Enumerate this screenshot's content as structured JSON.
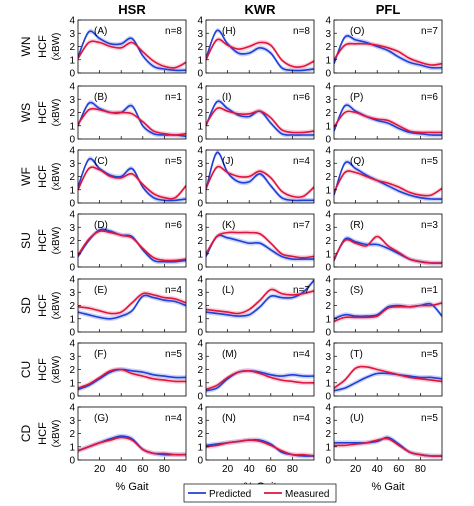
{
  "figure": {
    "columns": [
      "HSR",
      "KWR",
      "PFL"
    ],
    "rows": [
      {
        "task": "WN",
        "ylabel": "HCF",
        "yunit": "(xBW)"
      },
      {
        "task": "WS",
        "ylabel": "HCF",
        "yunit": "(xBW)"
      },
      {
        "task": "WF",
        "ylabel": "HCF",
        "yunit": "(xBW)"
      },
      {
        "task": "SU",
        "ylabel": "HCF",
        "yunit": "(xBW)"
      },
      {
        "task": "SD",
        "ylabel": "HCF",
        "yunit": "(xBW)"
      },
      {
        "task": "CU",
        "ylabel": "HCF",
        "yunit": "(xBW)"
      },
      {
        "task": "CD",
        "ylabel": "HCF",
        "yunit": "(xBW)"
      }
    ],
    "xlabel": "% Gait",
    "legend": {
      "placement": "bottom-center",
      "items": [
        {
          "label": "Predicted",
          "color": "#1f3fd6"
        },
        {
          "label": "Measured",
          "color": "#e0143c"
        }
      ]
    },
    "colors": {
      "predicted": "#1f3fd6",
      "measured": "#e0143c",
      "predicted_band": "#8f9ff0",
      "measured_band": "#f2a0b4"
    }
  },
  "chart_data": {
    "type": "line",
    "x_range": [
      0,
      100
    ],
    "xticks": [
      20,
      40,
      60,
      80
    ],
    "ylim": [
      0,
      4
    ],
    "yticks": [
      0,
      1,
      2,
      3,
      4
    ],
    "x": [
      0,
      10,
      20,
      30,
      40,
      50,
      60,
      70,
      80,
      90,
      100
    ],
    "panels": [
      {
        "id": "A",
        "task": "WN",
        "group": "HSR",
        "n": "n=8",
        "series": [
          {
            "name": "Predicted",
            "values": [
              1.2,
              3.1,
              2.6,
              2.2,
              2.2,
              2.6,
              1.3,
              0.5,
              0.3,
              0.2,
              0.2
            ]
          },
          {
            "name": "Measured",
            "values": [
              1.1,
              2.3,
              2.3,
              2.0,
              1.9,
              2.3,
              1.6,
              0.9,
              0.5,
              0.4,
              0.8
            ]
          }
        ]
      },
      {
        "id": "H",
        "task": "WN",
        "group": "KWR",
        "n": "n=8",
        "series": [
          {
            "name": "Predicted",
            "values": [
              1.1,
              3.2,
              2.2,
              1.5,
              1.5,
              1.9,
              1.5,
              0.4,
              0.2,
              0.2,
              0.3
            ]
          },
          {
            "name": "Measured",
            "values": [
              1.0,
              2.5,
              2.1,
              1.8,
              2.0,
              2.3,
              2.1,
              1.0,
              0.5,
              0.5,
              0.9
            ]
          }
        ]
      },
      {
        "id": "O",
        "task": "WN",
        "group": "PFL",
        "n": "n=7",
        "series": [
          {
            "name": "Predicted",
            "values": [
              0.7,
              2.7,
              2.5,
              2.3,
              2.0,
              1.7,
              1.2,
              0.8,
              0.6,
              0.4,
              0.4
            ]
          },
          {
            "name": "Measured",
            "values": [
              1.0,
              2.1,
              2.2,
              2.2,
              2.1,
              1.9,
              1.6,
              1.1,
              0.8,
              0.6,
              0.7
            ]
          }
        ]
      },
      {
        "id": "B",
        "task": "WS",
        "group": "HSR",
        "n": "n=1",
        "series": [
          {
            "name": "Predicted",
            "values": [
              1.0,
              2.7,
              2.3,
              2.0,
              2.0,
              2.5,
              1.0,
              0.4,
              0.3,
              0.3,
              0.2
            ]
          },
          {
            "name": "Measured",
            "values": [
              1.1,
              2.2,
              2.2,
              2.0,
              2.0,
              1.9,
              1.3,
              0.6,
              0.4,
              0.3,
              0.4
            ]
          }
        ]
      },
      {
        "id": "I",
        "task": "WS",
        "group": "KWR",
        "n": "n=6",
        "series": [
          {
            "name": "Predicted",
            "values": [
              1.0,
              2.8,
              2.3,
              1.8,
              1.7,
              2.1,
              1.2,
              0.4,
              0.3,
              0.3,
              0.3
            ]
          },
          {
            "name": "Measured",
            "values": [
              1.1,
              2.3,
              2.1,
              1.9,
              1.9,
              2.1,
              1.6,
              0.7,
              0.5,
              0.5,
              0.6
            ]
          }
        ]
      },
      {
        "id": "P",
        "task": "WS",
        "group": "PFL",
        "n": "n=6",
        "series": [
          {
            "name": "Predicted",
            "values": [
              0.6,
              2.5,
              2.1,
              1.7,
              1.4,
              1.2,
              0.8,
              0.5,
              0.4,
              0.3,
              0.3
            ]
          },
          {
            "name": "Measured",
            "values": [
              0.9,
              2.0,
              2.0,
              1.7,
              1.5,
              1.4,
              1.0,
              0.6,
              0.5,
              0.5,
              0.5
            ]
          }
        ]
      },
      {
        "id": "C",
        "task": "WF",
        "group": "HSR",
        "n": "n=5",
        "series": [
          {
            "name": "Predicted",
            "values": [
              1.2,
              3.3,
              2.6,
              2.1,
              2.0,
              2.6,
              1.2,
              0.4,
              0.2,
              0.2,
              0.3
            ]
          },
          {
            "name": "Measured",
            "values": [
              1.0,
              2.6,
              2.5,
              2.0,
              1.9,
              2.2,
              1.4,
              0.7,
              0.4,
              0.4,
              1.3
            ]
          }
        ]
      },
      {
        "id": "J",
        "task": "WF",
        "group": "KWR",
        "n": "n=4",
        "series": [
          {
            "name": "Predicted",
            "values": [
              1.0,
              3.8,
              2.3,
              1.6,
              1.6,
              2.2,
              1.3,
              0.4,
              0.2,
              0.2,
              0.2
            ]
          },
          {
            "name": "Measured",
            "values": [
              1.1,
              2.7,
              2.3,
              2.0,
              2.0,
              2.4,
              1.9,
              0.9,
              0.5,
              0.5,
              1.2
            ]
          }
        ]
      },
      {
        "id": "Q",
        "task": "WF",
        "group": "PFL",
        "n": "n=5",
        "series": [
          {
            "name": "Predicted",
            "values": [
              0.6,
              3.0,
              2.6,
              2.1,
              1.7,
              1.3,
              0.9,
              0.6,
              0.4,
              0.3,
              0.3
            ]
          },
          {
            "name": "Measured",
            "values": [
              0.8,
              2.3,
              2.3,
              2.0,
              1.7,
              1.5,
              1.2,
              0.8,
              0.6,
              0.6,
              1.1
            ]
          }
        ]
      },
      {
        "id": "D",
        "task": "SU",
        "group": "HSR",
        "n": "n=6",
        "series": [
          {
            "name": "Predicted",
            "values": [
              0.8,
              2.0,
              2.8,
              2.7,
              2.4,
              2.3,
              1.3,
              0.5,
              0.4,
              0.4,
              0.5
            ]
          },
          {
            "name": "Measured",
            "values": [
              0.9,
              2.1,
              2.7,
              2.6,
              2.4,
              2.2,
              1.4,
              0.7,
              0.5,
              0.5,
              0.6
            ]
          }
        ]
      },
      {
        "id": "K",
        "task": "SU",
        "group": "KWR",
        "n": "n=7",
        "series": [
          {
            "name": "Predicted",
            "values": [
              0.8,
              2.3,
              2.2,
              2.0,
              1.8,
              1.8,
              1.3,
              0.8,
              0.6,
              0.6,
              0.6
            ]
          },
          {
            "name": "Measured",
            "values": [
              1.0,
              2.3,
              2.6,
              2.6,
              2.6,
              2.5,
              1.8,
              1.0,
              0.8,
              0.7,
              0.8
            ]
          }
        ]
      },
      {
        "id": "R",
        "task": "SU",
        "group": "PFL",
        "n": "n=3",
        "series": [
          {
            "name": "Predicted",
            "values": [
              0.5,
              2.1,
              1.9,
              1.7,
              1.7,
              1.4,
              1.0,
              0.6,
              0.4,
              0.3,
              0.3
            ]
          },
          {
            "name": "Measured",
            "values": [
              0.6,
              2.0,
              1.8,
              1.6,
              2.3,
              1.6,
              1.1,
              0.6,
              0.4,
              0.3,
              0.3
            ]
          }
        ]
      },
      {
        "id": "E",
        "task": "SD",
        "group": "HSR",
        "n": "n=4",
        "series": [
          {
            "name": "Predicted",
            "values": [
              1.5,
              1.3,
              1.1,
              1.0,
              1.2,
              1.6,
              2.7,
              2.6,
              2.4,
              2.3,
              2.0
            ]
          },
          {
            "name": "Measured",
            "values": [
              1.9,
              1.8,
              1.6,
              1.4,
              1.5,
              2.2,
              2.9,
              2.8,
              2.6,
              2.5,
              2.2
            ]
          }
        ]
      },
      {
        "id": "L",
        "task": "SD",
        "group": "KWR",
        "n": "n=7",
        "series": [
          {
            "name": "Predicted",
            "values": [
              1.5,
              1.4,
              1.3,
              1.2,
              1.3,
              1.9,
              2.7,
              2.6,
              2.6,
              3.0,
              3.9
            ]
          },
          {
            "name": "Measured",
            "values": [
              1.7,
              1.6,
              1.5,
              1.4,
              1.7,
              2.4,
              3.2,
              2.9,
              2.8,
              2.9,
              3.1
            ]
          }
        ]
      },
      {
        "id": "S",
        "task": "SD",
        "group": "PFL",
        "n": "n=1",
        "series": [
          {
            "name": "Predicted",
            "values": [
              1.0,
              1.3,
              1.2,
              1.2,
              1.3,
              1.9,
              2.0,
              1.9,
              2.0,
              2.1,
              1.2
            ]
          },
          {
            "name": "Measured",
            "values": [
              0.8,
              1.1,
              1.1,
              1.1,
              1.2,
              1.8,
              1.9,
              1.9,
              2.0,
              2.0,
              2.2
            ]
          }
        ]
      },
      {
        "id": "F",
        "task": "CU",
        "group": "HSR",
        "n": "n=5",
        "series": [
          {
            "name": "Predicted",
            "values": [
              0.5,
              0.8,
              1.3,
              1.8,
              2.0,
              1.9,
              1.8,
              1.6,
              1.5,
              1.4,
              1.4
            ]
          },
          {
            "name": "Measured",
            "values": [
              0.6,
              0.9,
              1.4,
              1.9,
              2.0,
              1.7,
              1.5,
              1.3,
              1.2,
              1.1,
              1.1
            ]
          }
        ]
      },
      {
        "id": "M",
        "task": "CU",
        "group": "KWR",
        "n": "n=4",
        "series": [
          {
            "name": "Predicted",
            "values": [
              0.4,
              0.6,
              1.3,
              1.8,
              1.9,
              1.8,
              1.6,
              1.5,
              1.6,
              1.5,
              1.5
            ]
          },
          {
            "name": "Measured",
            "values": [
              0.5,
              0.8,
              1.4,
              1.8,
              1.9,
              1.7,
              1.4,
              1.2,
              1.1,
              1.0,
              1.0
            ]
          }
        ]
      },
      {
        "id": "T",
        "task": "CU",
        "group": "PFL",
        "n": "n=5",
        "series": [
          {
            "name": "Predicted",
            "values": [
              0.4,
              0.6,
              1.0,
              1.4,
              1.7,
              1.7,
              1.6,
              1.5,
              1.4,
              1.4,
              1.3
            ]
          },
          {
            "name": "Measured",
            "values": [
              0.6,
              1.2,
              2.1,
              2.2,
              2.0,
              1.8,
              1.6,
              1.4,
              1.3,
              1.2,
              1.1
            ]
          }
        ]
      },
      {
        "id": "G",
        "task": "CD",
        "group": "HSR",
        "n": "n=4",
        "series": [
          {
            "name": "Predicted",
            "values": [
              0.7,
              1.0,
              1.3,
              1.6,
              1.8,
              1.6,
              0.8,
              0.5,
              0.4,
              0.4,
              0.4
            ]
          },
          {
            "name": "Measured",
            "values": [
              0.7,
              1.0,
              1.3,
              1.5,
              1.7,
              1.5,
              0.8,
              0.5,
              0.5,
              0.4,
              0.4
            ]
          }
        ]
      },
      {
        "id": "N",
        "task": "CD",
        "group": "KWR",
        "n": "n=4",
        "series": [
          {
            "name": "Predicted",
            "values": [
              1.1,
              1.2,
              1.3,
              1.4,
              1.5,
              1.5,
              1.2,
              0.6,
              0.4,
              0.3,
              0.3
            ]
          },
          {
            "name": "Measured",
            "values": [
              1.0,
              1.1,
              1.3,
              1.4,
              1.5,
              1.4,
              1.1,
              0.7,
              0.4,
              0.4,
              0.3
            ]
          }
        ]
      },
      {
        "id": "U",
        "task": "CD",
        "group": "PFL",
        "n": "n=5",
        "series": [
          {
            "name": "Predicted",
            "values": [
              1.3,
              1.3,
              1.3,
              1.3,
              1.4,
              1.7,
              1.2,
              0.6,
              0.4,
              0.3,
              0.3
            ]
          },
          {
            "name": "Measured",
            "values": [
              1.1,
              1.1,
              1.2,
              1.3,
              1.5,
              1.6,
              1.1,
              0.6,
              0.4,
              0.3,
              0.3
            ]
          }
        ]
      }
    ]
  }
}
